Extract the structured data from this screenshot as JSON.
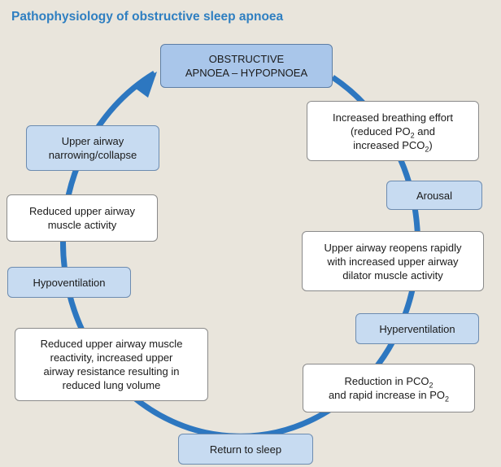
{
  "title": "Pathophysiology of obstructive sleep apnoea",
  "nodes": {
    "apnoea": [
      "OBSTRUCTIVE",
      "APNOEA – HYPOPNOEA"
    ],
    "effort": {
      "line1": "Increased breathing effort",
      "line2_pre": "(reduced PO",
      "line2_sub": "2",
      "line2_post": " and",
      "line3_pre": "increased PCO",
      "line3_sub": "2",
      "line3_post": ")"
    },
    "arousal": "Arousal",
    "reopens": [
      "Upper airway reopens rapidly",
      "with increased upper airway",
      "dilator muscle activity"
    ],
    "hyperventilation": "Hyperventilation",
    "reduction": {
      "line1_pre": "Reduction in  PCO",
      "line1_sub": "2",
      "line2_pre": "and rapid increase in PO",
      "line2_sub": "2"
    },
    "return_sleep": "Return to sleep",
    "reactivity": [
      "Reduced upper airway muscle",
      "reactivity, increased upper",
      "airway resistance resulting in",
      "reduced lung volume"
    ],
    "hypoventilation": "Hypoventilation",
    "reduced_activity": [
      "Reduced upper airway",
      "muscle activity"
    ],
    "narrowing": [
      "Upper airway",
      "narrowing/collapse"
    ]
  },
  "colors": {
    "title": "#2f7fc1",
    "cycle": "#2d77c0",
    "blue_box": "#c7dbf1",
    "white_box": "#ffffff",
    "background": "#e9e5dc"
  }
}
